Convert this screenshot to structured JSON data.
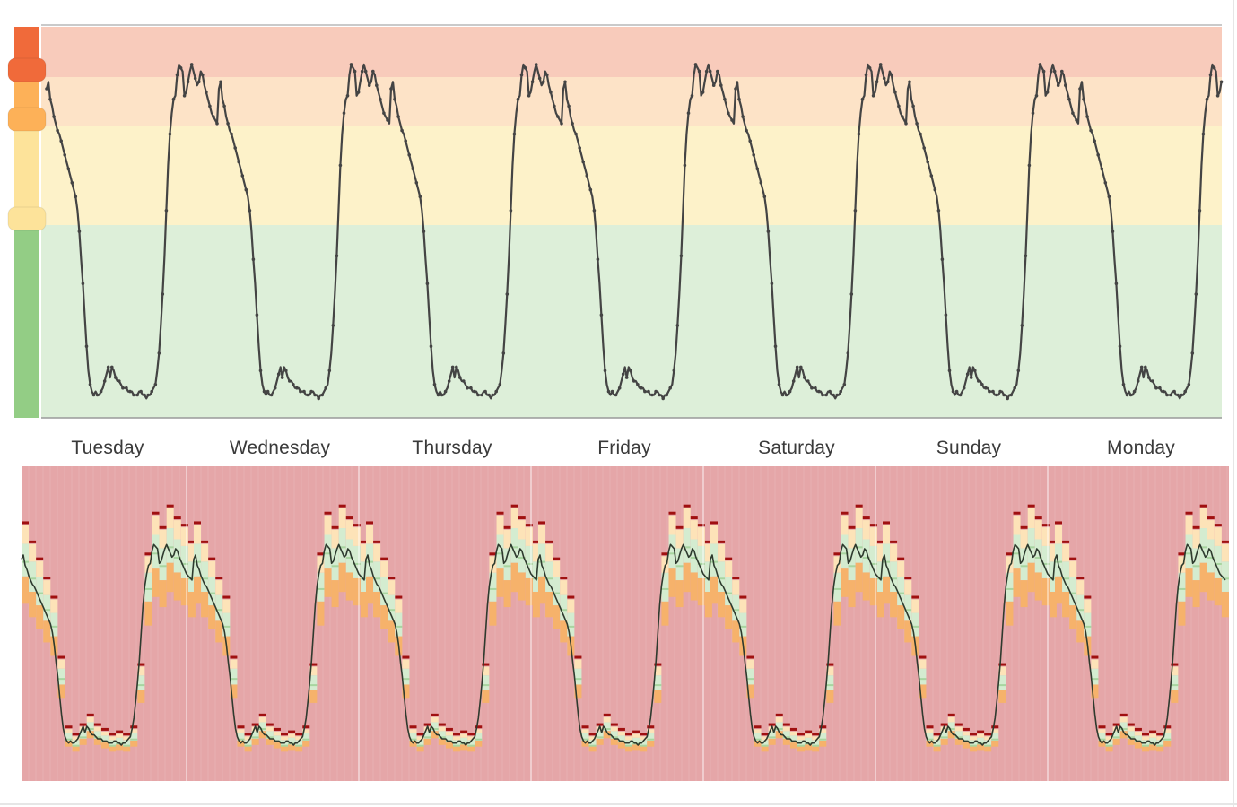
{
  "chart_data": [
    {
      "type": "line",
      "title": "",
      "xlabel": "",
      "ylabel": "",
      "threshold_bands": [
        {
          "level": "critical",
          "color": "#f8cbbb"
        },
        {
          "level": "high",
          "color": "#fde3c7"
        },
        {
          "level": "elevated",
          "color": "#fdf2c9"
        },
        {
          "level": "normal",
          "color": "#ddefd9"
        }
      ],
      "slider_handles": [
        {
          "level": "critical",
          "color": "#f06a3a"
        },
        {
          "level": "high",
          "color": "#fdb158"
        },
        {
          "level": "elevated",
          "color": "#fde39a"
        }
      ],
      "slider_track_colors": [
        "#f06a3a",
        "#fdb158",
        "#fde39a",
        "#93cd85"
      ],
      "series": [
        {
          "name": "",
          "line_color": "#444444",
          "day_profile": [
            92,
            94,
            89,
            87,
            84,
            82,
            80,
            79,
            77,
            75,
            73,
            71,
            69,
            67,
            65,
            63,
            61,
            57,
            51,
            43,
            36,
            27,
            18,
            11,
            7,
            5,
            4,
            5,
            4,
            4,
            5,
            6,
            8,
            10,
            12,
            9,
            12,
            11,
            9,
            8,
            8,
            7,
            6,
            6,
            6,
            5,
            5,
            5,
            4,
            4,
            4,
            5,
            5,
            4,
            4,
            3,
            4,
            4,
            5,
            6,
            7,
            11,
            16,
            24,
            33,
            44,
            57,
            70,
            79,
            85,
            89,
            90,
            96,
            99,
            98,
            97,
            90,
            91,
            94,
            97,
            99,
            97,
            95,
            93,
            94,
            97,
            96,
            93,
            91,
            89,
            87,
            85,
            84,
            83,
            82
          ]
        }
      ],
      "categories": [
        "Tuesday",
        "Wednesday",
        "Thursday",
        "Friday",
        "Saturday",
        "Sunday",
        "Monday"
      ],
      "ylim": [
        0,
        100
      ]
    },
    {
      "type": "area",
      "title": "",
      "background_color": "#e5a6a8",
      "series": [
        {
          "name": "",
          "color": "#f6b26b"
        },
        {
          "name": "",
          "color": "#fde3b8"
        },
        {
          "name": "",
          "color": "#d4ecd0"
        },
        {
          "name": "",
          "color": "#a8d5a0"
        },
        {
          "name": "",
          "color": "#a01010"
        },
        {
          "name": "",
          "color": "#2e3a2e"
        }
      ],
      "categories": [
        "Tuesday",
        "Wednesday",
        "Thursday",
        "Friday",
        "Saturday",
        "Sunday",
        "Monday"
      ],
      "ylim": [
        0,
        100
      ]
    }
  ]
}
